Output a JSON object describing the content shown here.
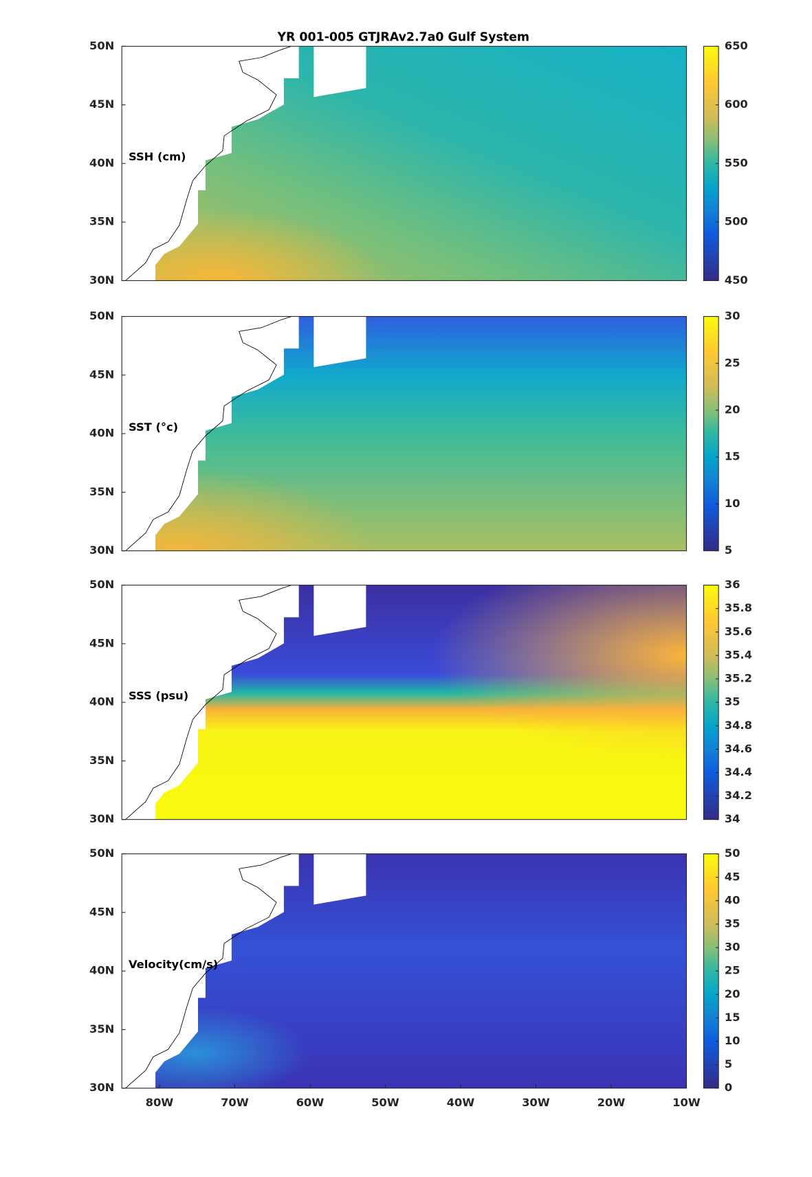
{
  "chart_data": [
    {
      "type": "map",
      "title": "YR 001-005 GTJRAv2.7a0 Gulf System",
      "label": "SSH (cm)",
      "xlim": [
        -85,
        -10
      ],
      "ylim": [
        30,
        50
      ],
      "yticks": [
        {
          "value": 30,
          "label": "30N"
        },
        {
          "value": 35,
          "label": "35N"
        },
        {
          "value": 40,
          "label": "40N"
        },
        {
          "value": 45,
          "label": "45N"
        },
        {
          "value": 50,
          "label": "50N"
        }
      ],
      "clim": [
        450,
        650
      ],
      "cticks": [
        450,
        500,
        550,
        600,
        650
      ]
    },
    {
      "type": "map",
      "label": "SST (°c)",
      "xlim": [
        -85,
        -10
      ],
      "ylim": [
        30,
        50
      ],
      "yticks": [
        {
          "value": 30,
          "label": "30N"
        },
        {
          "value": 35,
          "label": "35N"
        },
        {
          "value": 40,
          "label": "40N"
        },
        {
          "value": 45,
          "label": "45N"
        },
        {
          "value": 50,
          "label": "50N"
        }
      ],
      "clim": [
        5,
        30
      ],
      "cticks": [
        5,
        10,
        15,
        20,
        25,
        30
      ]
    },
    {
      "type": "map",
      "label": "SSS (psu)",
      "xlim": [
        -85,
        -10
      ],
      "ylim": [
        30,
        50
      ],
      "yticks": [
        {
          "value": 30,
          "label": "30N"
        },
        {
          "value": 35,
          "label": "35N"
        },
        {
          "value": 40,
          "label": "40N"
        },
        {
          "value": 45,
          "label": "45N"
        },
        {
          "value": 50,
          "label": "50N"
        }
      ],
      "clim": [
        34,
        36
      ],
      "cticks": [
        34,
        34.2,
        34.4,
        34.6,
        34.8,
        35,
        35.2,
        35.4,
        35.6,
        35.8,
        36
      ]
    },
    {
      "type": "map",
      "label": "Velocity(cm/s)",
      "xlim": [
        -85,
        -10
      ],
      "xticks": [
        {
          "value": -80,
          "label": "80W"
        },
        {
          "value": -70,
          "label": "70W"
        },
        {
          "value": -60,
          "label": "60W"
        },
        {
          "value": -50,
          "label": "50W"
        },
        {
          "value": -40,
          "label": "40W"
        },
        {
          "value": -30,
          "label": "30W"
        },
        {
          "value": -20,
          "label": "20W"
        },
        {
          "value": -10,
          "label": "10W"
        }
      ],
      "ylim": [
        30,
        50
      ],
      "yticks": [
        {
          "value": 30,
          "label": "30N"
        },
        {
          "value": 35,
          "label": "35N"
        },
        {
          "value": 40,
          "label": "40N"
        },
        {
          "value": 45,
          "label": "45N"
        },
        {
          "value": 50,
          "label": "50N"
        }
      ],
      "clim": [
        0,
        50
      ],
      "cticks": [
        0,
        5,
        10,
        15,
        20,
        25,
        30,
        35,
        40,
        45,
        50
      ]
    }
  ]
}
